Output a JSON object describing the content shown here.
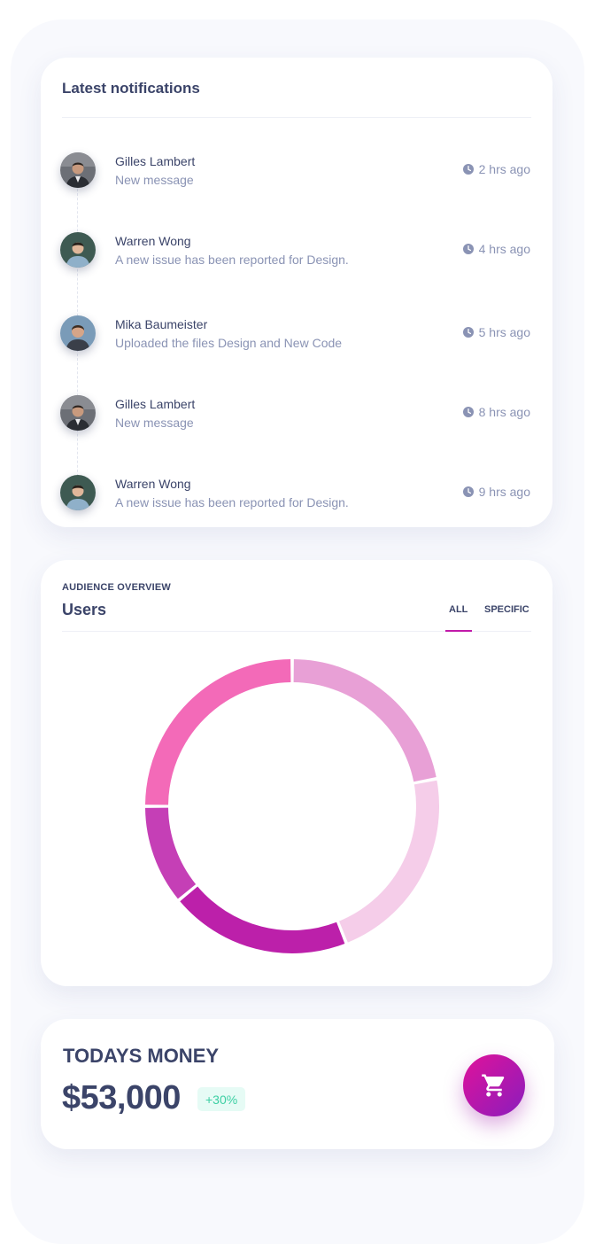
{
  "notifications": {
    "title": "Latest notifications",
    "items": [
      {
        "name": "Gilles Lambert",
        "message": "New message",
        "time": "2 hrs ago"
      },
      {
        "name": "Warren Wong",
        "message": "A new issue has been reported for Design.",
        "time": "4 hrs ago"
      },
      {
        "name": "Mika Baumeister",
        "message": "Uploaded the files Design and New Code",
        "time": "5 hrs ago"
      },
      {
        "name": "Gilles Lambert",
        "message": "New message",
        "time": "8 hrs ago"
      },
      {
        "name": "Warren Wong",
        "message": "A new issue has been reported for Design.",
        "time": "9 hrs ago"
      }
    ],
    "icons": {
      "time": "clock-icon"
    }
  },
  "audience": {
    "overline": "AUDIENCE OVERVIEW",
    "title": "Users",
    "tabs": [
      {
        "label": "ALL",
        "active": true
      },
      {
        "label": "SPECIFIC",
        "active": false
      }
    ],
    "accent_color": "#c11aa9"
  },
  "chart_data": {
    "type": "pie",
    "variant": "donut",
    "legend": "none",
    "slices": [
      {
        "value": 22,
        "color": "#e8a0d6"
      },
      {
        "value": 22,
        "color": "#f5cde9"
      },
      {
        "value": 20,
        "color": "#bc20aa"
      },
      {
        "value": 11,
        "color": "#c53fb6"
      },
      {
        "value": 25,
        "color": "#f36ab8"
      }
    ]
  },
  "money": {
    "label": "TODAYS MONEY",
    "value": "$53,000",
    "change": "+30%",
    "change_color": "#3ccfa3",
    "button_icon": "shopping-cart-icon",
    "button_gradient": [
      "#e0129a",
      "#8a1dbd"
    ]
  }
}
